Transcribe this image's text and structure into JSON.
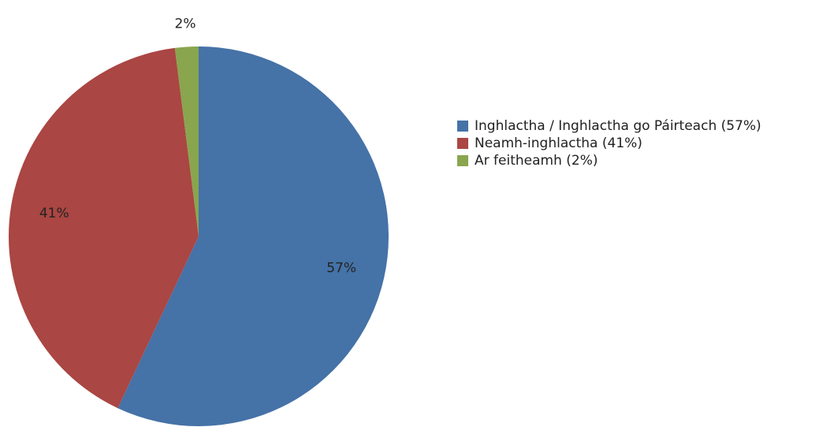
{
  "chart_data": {
    "type": "pie",
    "categories": [
      "Inghlactha / Inghlactha go Páirteach (57%)",
      "Neamh-inghlactha (41%)",
      "Ar feitheamh (2%)"
    ],
    "values": [
      57,
      41,
      2
    ],
    "value_labels": [
      "57%",
      "41%",
      "2%"
    ],
    "colors": [
      "#4572a7",
      "#aa4643",
      "#89a54e"
    ],
    "legend": "right"
  }
}
